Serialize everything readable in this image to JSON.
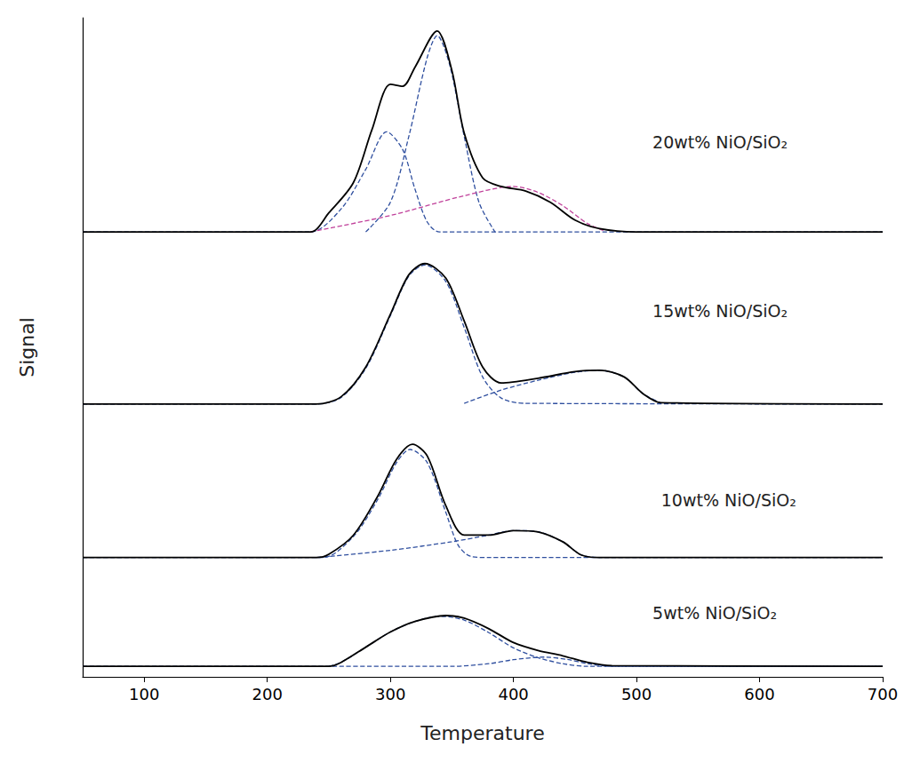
{
  "chart_data": {
    "type": "line",
    "x_label": "Temperature",
    "y_label": "Signal",
    "xlim": [
      50,
      700
    ],
    "xticks": [
      100,
      200,
      300,
      400,
      500,
      600,
      700
    ],
    "ylim": [
      0,
      100
    ],
    "tick_labels": "x",
    "grid": false,
    "annotations": [
      {
        "text": "20wt% NiO/SiO₂",
        "x": 513,
        "y": 81.1
      },
      {
        "text": "15wt% NiO/SiO₂",
        "x": 513,
        "y": 55.5
      },
      {
        "text": "10wt% NiO/SiO₂",
        "x": 520,
        "y": 26.8
      },
      {
        "text": "5wt% NiO/SiO₂",
        "x": 513,
        "y": 9.7
      }
    ],
    "series": [
      {
        "color": "#2f4f9f",
        "line_style": "dashed",
        "x": [
          250,
          260,
          280,
          300,
          320,
          340,
          360,
          380,
          400,
          420,
          440,
          460,
          700
        ],
        "values": [
          1.6,
          2.2,
          4.5,
          6.8,
          8.4,
          9.2,
          8.6,
          6.7,
          4.4,
          2.9,
          2.0,
          1.6,
          1.6
        ]
      },
      {
        "color": "#2f4f9f",
        "line_style": "dashed",
        "x": [
          50,
          350,
          380,
          400,
          425,
          445,
          460,
          480,
          700
        ],
        "values": [
          1.6,
          1.6,
          2.0,
          2.6,
          3.0,
          2.6,
          2.0,
          1.6,
          1.6
        ]
      },
      {
        "color": "#000000",
        "line_style": "solid",
        "x": [
          50,
          250,
          260,
          280,
          300,
          320,
          345,
          360,
          380,
          400,
          420,
          440,
          460,
          480,
          700
        ],
        "values": [
          1.6,
          1.6,
          2.2,
          4.5,
          6.8,
          8.4,
          9.3,
          8.9,
          7.3,
          5.2,
          4.0,
          3.2,
          2.2,
          1.7,
          1.6
        ]
      },
      {
        "color": "#2f4f9f",
        "line_style": "dashed",
        "x": [
          50,
          245,
          270,
          290,
          305,
          316,
          330,
          345,
          355,
          365,
          380,
          700
        ],
        "values": [
          18.1,
          18.1,
          21.3,
          27.0,
          32.5,
          34.5,
          32.5,
          25.0,
          20.0,
          18.3,
          18.1,
          18.1
        ]
      },
      {
        "color": "#2f4f9f",
        "line_style": "dashed",
        "x": [
          240,
          300,
          350,
          380,
          400,
          420,
          440,
          455,
          470
        ],
        "values": [
          18.1,
          19.2,
          20.5,
          21.5,
          22.2,
          22.0,
          20.5,
          18.5,
          18.1
        ]
      },
      {
        "color": "#000000",
        "line_style": "solid",
        "x": [
          50,
          240,
          250,
          270,
          290,
          305,
          318,
          330,
          345,
          360,
          380,
          400,
          420,
          440,
          455,
          470,
          700
        ],
        "values": [
          18.1,
          18.1,
          18.6,
          21.5,
          27.5,
          33.0,
          35.3,
          33.5,
          26.0,
          21.5,
          21.5,
          22.2,
          22.0,
          20.5,
          18.5,
          18.1,
          18.1
        ]
      },
      {
        "color": "#2f4f9f",
        "line_style": "dashed",
        "x": [
          50,
          240,
          260,
          280,
          300,
          315,
          328,
          345,
          360,
          375,
          390,
          410,
          700
        ],
        "values": [
          41.4,
          41.4,
          42.4,
          46.8,
          54.8,
          60.8,
          62.5,
          60.0,
          53.0,
          45.5,
          42.3,
          41.5,
          41.4
        ]
      },
      {
        "color": "#2f4f9f",
        "line_style": "dashed",
        "x": [
          360,
          390,
          420,
          450,
          470,
          490,
          505,
          520
        ],
        "values": [
          41.5,
          43.5,
          45.0,
          46.2,
          46.5,
          45.5,
          43.0,
          41.5
        ]
      },
      {
        "color": "#000000",
        "line_style": "solid",
        "x": [
          50,
          240,
          260,
          280,
          300,
          315,
          328,
          345,
          360,
          375,
          390,
          420,
          450,
          470,
          490,
          505,
          520,
          700
        ],
        "values": [
          41.4,
          41.4,
          42.5,
          47.0,
          55.0,
          61.0,
          62.7,
          60.5,
          54.0,
          47.0,
          44.6,
          45.3,
          46.3,
          46.5,
          45.5,
          43.0,
          41.6,
          41.4
        ]
      },
      {
        "color": "#2f4f9f",
        "line_style": "dashed",
        "x": [
          50,
          235,
          260,
          280,
          297,
          310,
          320,
          330,
          340,
          700
        ],
        "values": [
          67.5,
          67.5,
          71.0,
          77.0,
          82.7,
          80.0,
          74.0,
          69.0,
          67.5,
          67.5
        ]
      },
      {
        "color": "#2f4f9f",
        "line_style": "dashed",
        "x": [
          280,
          300,
          315,
          330,
          338,
          348,
          360,
          372,
          385
        ],
        "values": [
          67.5,
          72.0,
          82.0,
          94.0,
          97.3,
          93.0,
          82.0,
          72.0,
          67.5
        ]
      },
      {
        "color": "#c0409a",
        "line_style": "dashed",
        "x": [
          235,
          300,
          360,
          400,
          420,
          440,
          460,
          475
        ],
        "values": [
          67.5,
          70.0,
          73.0,
          74.4,
          73.5,
          71.5,
          68.8,
          67.6
        ]
      },
      {
        "color": "#000000",
        "line_style": "solid",
        "x": [
          50,
          235,
          250,
          270,
          285,
          300,
          310,
          320,
          338,
          350,
          360,
          375,
          390,
          410,
          430,
          450,
          470,
          500,
          700
        ],
        "values": [
          67.5,
          67.5,
          70.4,
          75.0,
          83.0,
          89.9,
          89.6,
          92.5,
          98.0,
          92.0,
          82.5,
          75.7,
          74.4,
          73.7,
          72.0,
          69.3,
          68.0,
          67.5,
          67.5
        ]
      }
    ]
  }
}
